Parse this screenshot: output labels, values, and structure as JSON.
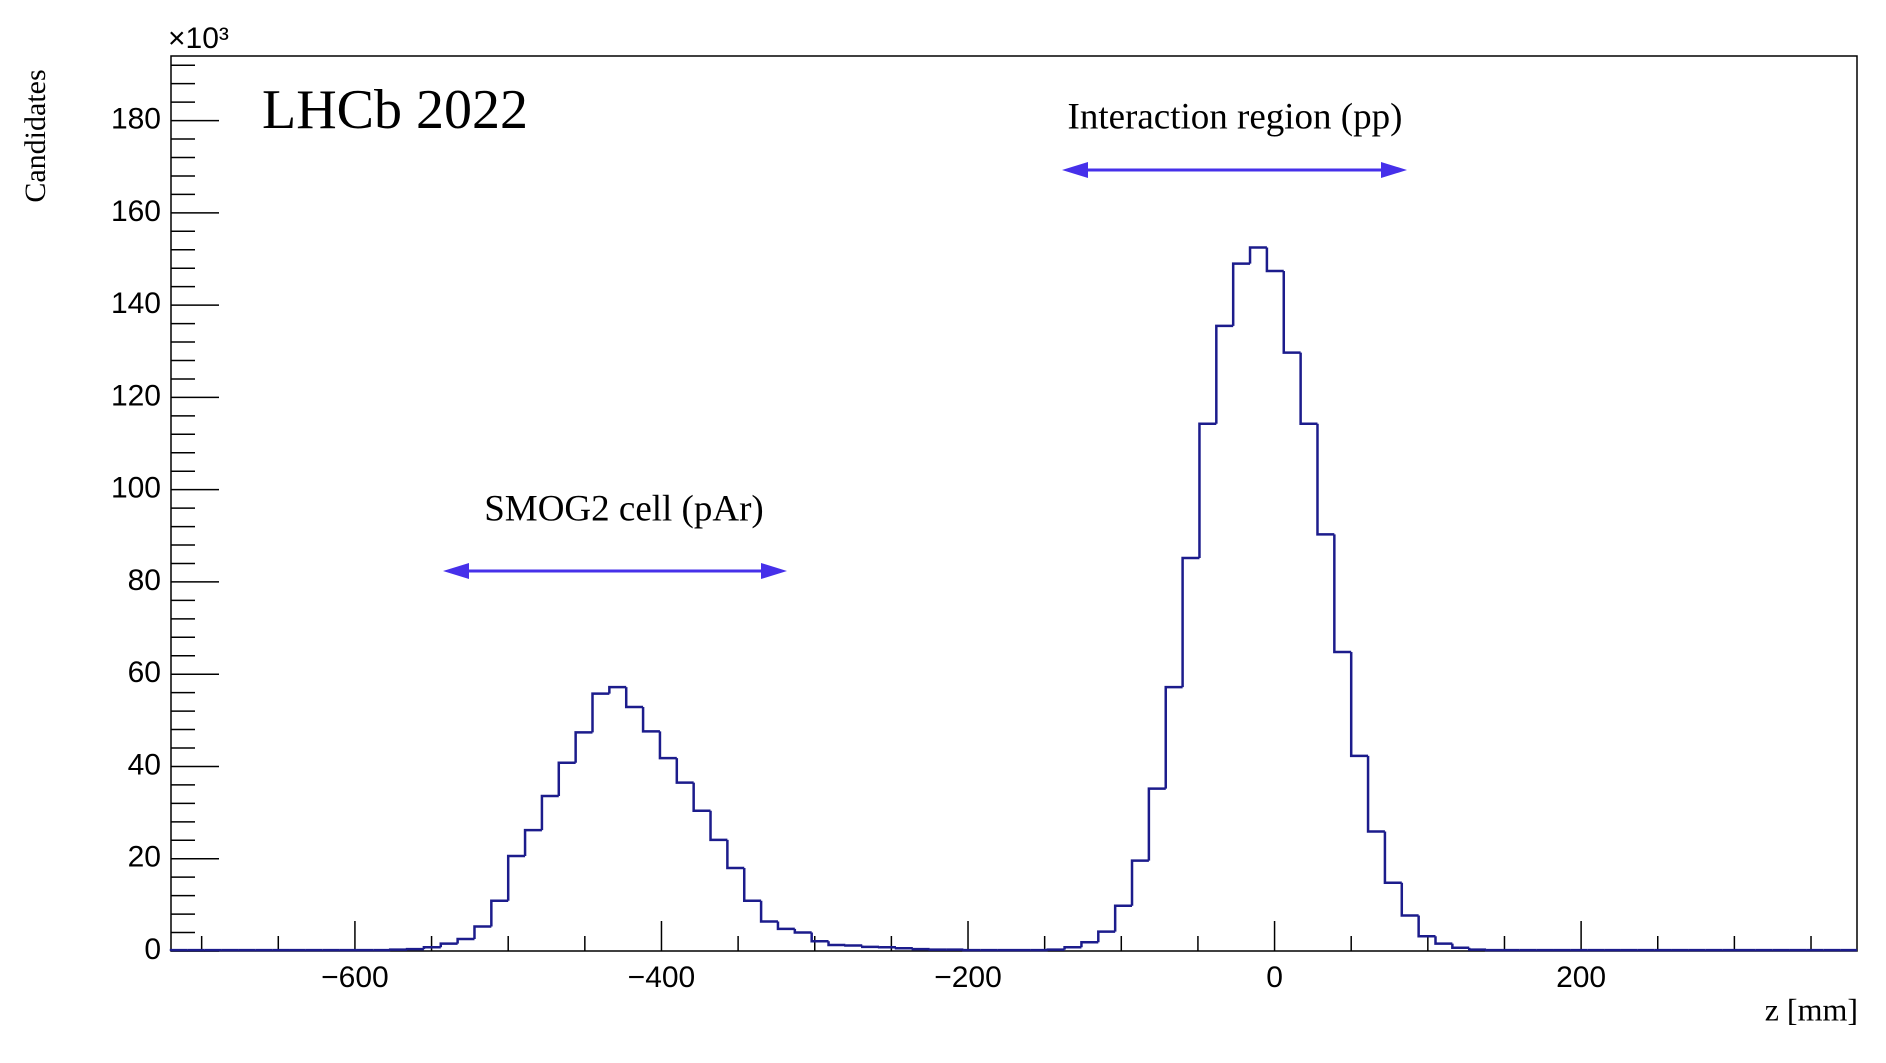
{
  "chart_data": {
    "type": "histogram",
    "y_multiplier": "×10³",
    "annotations": [
      "LHCb 2022",
      "Interaction region (pp)",
      "SMOG2 cell (pAr)"
    ],
    "xlabel": "z [mm]",
    "ylabel": "Candidates",
    "color": "#1c1c8c",
    "annotation_color": "#4630ea",
    "bins": [
      -720,
      -709,
      -698,
      -687,
      -676,
      -665,
      -654,
      -643,
      -632,
      -621,
      -610,
      -599,
      -588,
      -577,
      -566,
      -555,
      -544,
      -533,
      -522,
      -511,
      -500,
      -489,
      -478,
      -467,
      -456,
      -445,
      -434,
      -423,
      -412,
      -401,
      -390,
      -379,
      -368,
      -357,
      -346,
      -335,
      -324,
      -313,
      -302,
      -291,
      -280,
      -269,
      -258,
      -247,
      -236,
      -225,
      -214,
      -203,
      -192,
      -181,
      -170,
      -159,
      -148,
      -137,
      -126,
      -115,
      -104,
      -93,
      -82,
      -71,
      -60,
      -49,
      -38,
      -27,
      -16,
      -5,
      6,
      17,
      28,
      39,
      50,
      61,
      72,
      83,
      94,
      105,
      116,
      127,
      138,
      149,
      160,
      171,
      182,
      193,
      204,
      215,
      226,
      237,
      248,
      259,
      270,
      281,
      292,
      303,
      314,
      325,
      336,
      347,
      358,
      369,
      380
    ],
    "values": [
      0.2,
      0.2,
      0.2,
      0.2,
      0.2,
      0.2,
      0.2,
      0.2,
      0.2,
      0.2,
      0.2,
      0.2,
      0.2,
      0.3,
      0.4,
      0.8,
      1.6,
      2.6,
      5.3,
      10.9,
      20.6,
      26.2,
      33.6,
      40.8,
      47.4,
      55.8,
      57.2,
      52.9,
      47.6,
      41.8,
      36.5,
      30.4,
      24.1,
      18.0,
      10.9,
      6.4,
      4.8,
      4.0,
      2.1,
      1.3,
      1.2,
      0.9,
      0.8,
      0.6,
      0.4,
      0.3,
      0.3,
      0.2,
      0.2,
      0.2,
      0.2,
      0.2,
      0.3,
      0.8,
      1.9,
      4.2,
      9.8,
      19.6,
      35.2,
      57.2,
      85.2,
      114.3,
      135.5,
      149,
      152.5,
      147.4,
      129.7,
      114.3,
      90.3,
      64.8,
      42.3,
      25.9,
      14.8,
      7.7,
      3.2,
      1.6,
      0.7,
      0.3,
      0.2,
      0.2,
      0.2,
      0.2,
      0.2,
      0.2,
      0.2,
      0.2,
      0.2,
      0.2,
      0.2,
      0.2,
      0.2,
      0.2,
      0.2,
      0.2,
      0.2,
      0.2,
      0.2,
      0.2,
      0.2,
      0.2
    ],
    "xlim": [
      -720,
      380
    ],
    "ylim": [
      0,
      194
    ],
    "xticks": [
      {
        "value": -600,
        "label": "−600"
      },
      {
        "value": -400,
        "label": "−400"
      },
      {
        "value": -200,
        "label": "−200"
      },
      0,
      200
    ],
    "xminorticks": [
      -700,
      -650,
      -550,
      -500,
      -450,
      -350,
      -300,
      -250,
      -150,
      -100,
      -50,
      50,
      100,
      150,
      250,
      300,
      350
    ],
    "yticks": [
      0,
      20,
      40,
      60,
      80,
      100,
      120,
      140,
      160,
      180
    ],
    "yminorticks": [
      4,
      8,
      12,
      16,
      24,
      28,
      32,
      36,
      44,
      48,
      52,
      56,
      64,
      68,
      72,
      76,
      84,
      88,
      92,
      96,
      104,
      108,
      112,
      116,
      124,
      128,
      132,
      136,
      144,
      148,
      152,
      156,
      164,
      168,
      172,
      176,
      184,
      188,
      192
    ]
  }
}
